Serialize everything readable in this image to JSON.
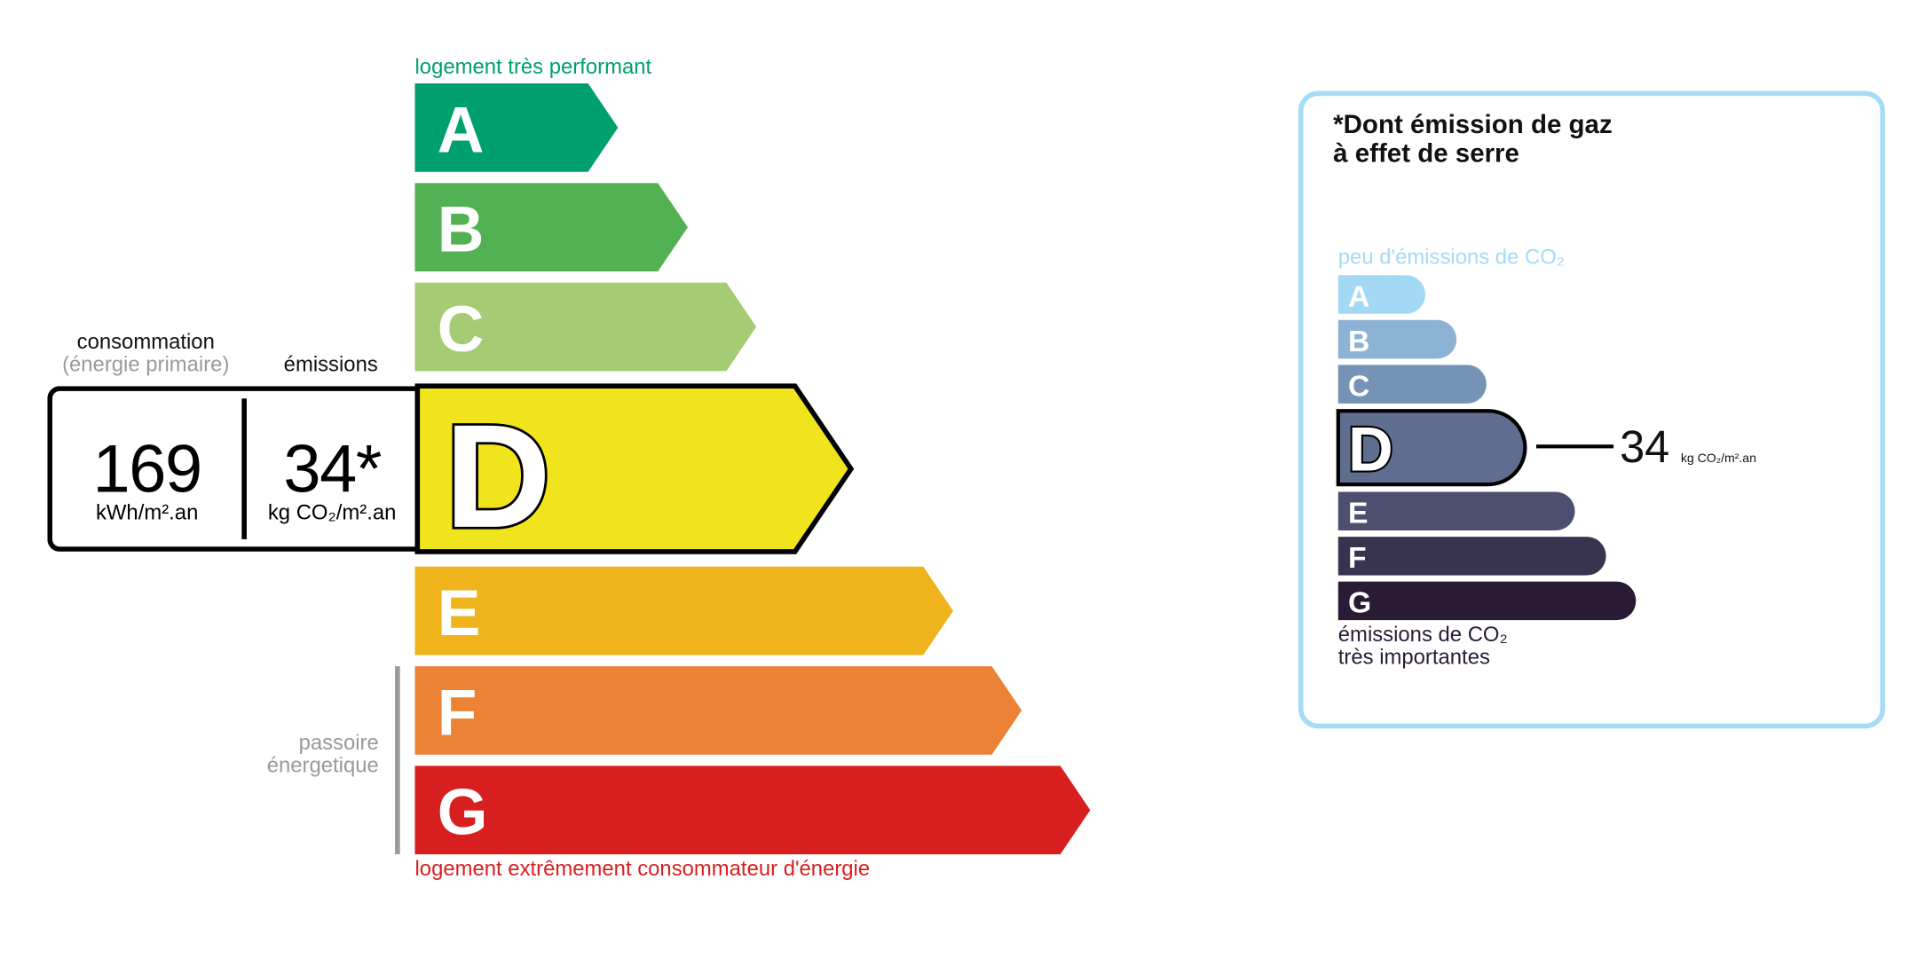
{
  "energy": {
    "top_label": "logement très performant",
    "bottom_label": "logement extrêmement consommateur d'énergie",
    "passoire_label_1": "passoire",
    "passoire_label_2": "énergetique",
    "current_class": "D",
    "classes": [
      {
        "letter": "A",
        "color": "#00a06e"
      },
      {
        "letter": "B",
        "color": "#52b153"
      },
      {
        "letter": "C",
        "color": "#a5cc74"
      },
      {
        "letter": "D",
        "color": "#f0e51c"
      },
      {
        "letter": "E",
        "color": "#efb41b"
      },
      {
        "letter": "F",
        "color": "#eb8235"
      },
      {
        "letter": "G",
        "color": "#d81f20"
      }
    ],
    "consumption_label": "consommation",
    "consumption_sublabel": "(énergie primaire)",
    "emissions_label": "émissions",
    "consumption_value": "169",
    "consumption_unit": "kWh/m².an",
    "emissions_value": "34*",
    "emissions_unit": "kg CO₂/m².an",
    "top_color": "#00a06e",
    "bottom_color": "#d81f20"
  },
  "ges": {
    "title_1": "*Dont émission de gaz",
    "title_2": "à effet de serre",
    "top_label": "peu d'émissions de CO₂",
    "bottom_label_1": "émissions de CO₂",
    "bottom_label_2": "très importantes",
    "current_class": "D",
    "value": "34",
    "unit": "kg CO₂/m².an",
    "border_color": "#a6dcf5",
    "classes": [
      {
        "letter": "A",
        "color": "#a4d9f6"
      },
      {
        "letter": "B",
        "color": "#8db3d4"
      },
      {
        "letter": "C",
        "color": "#7593b5"
      },
      {
        "letter": "D",
        "color": "#5f6e8f"
      },
      {
        "letter": "E",
        "color": "#4d4f6f"
      },
      {
        "letter": "F",
        "color": "#38344f"
      },
      {
        "letter": "G",
        "color": "#291b34"
      }
    ]
  }
}
